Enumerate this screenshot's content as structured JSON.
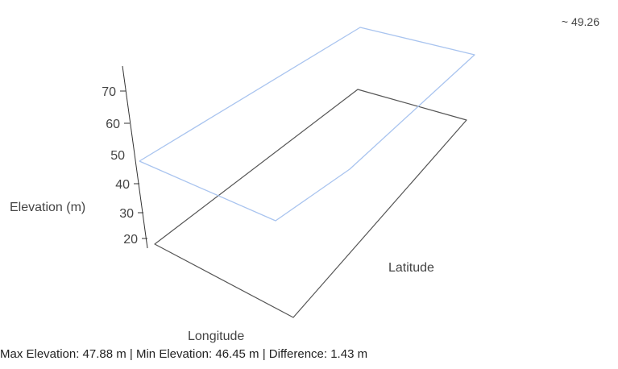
{
  "chart_data": {
    "type": "surface",
    "xlabel": "Longitude",
    "ylabel": "Latitude",
    "zlabel": "Elevation (m)",
    "z_ticks": [
      "20",
      "30",
      "40",
      "50",
      "60",
      "70"
    ],
    "legend_text": "~ 49.26",
    "surface": {
      "color": "#a9c4ef",
      "corner_elevations": [
        47.88,
        47.88,
        47.88,
        46.45,
        47.5
      ]
    },
    "base_color": "#555555"
  },
  "stats": {
    "text": "Max Elevation: 47.88 m | Min Elevation: 46.45 m | Difference: 1.43 m"
  }
}
